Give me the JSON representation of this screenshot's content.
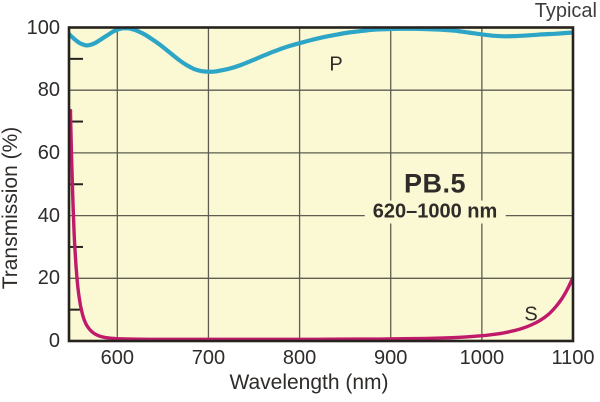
{
  "chart_data": {
    "type": "line",
    "title": "Typical",
    "xlabel": "Wavelength (nm)",
    "ylabel": "Transmission (%)",
    "xlim": [
      547,
      1100
    ],
    "ylim": [
      0,
      100
    ],
    "x_ticks": [
      600,
      700,
      800,
      900,
      1000,
      1100
    ],
    "y_ticks": [
      0,
      20,
      40,
      60,
      80,
      100
    ],
    "x_gridlines": [
      600,
      700,
      800,
      900,
      1000
    ],
    "y_gridlines": [
      20,
      40,
      60,
      80
    ],
    "y_minor_ticks": [
      10,
      30,
      50,
      70,
      90
    ],
    "grid": true,
    "legend_position": "none",
    "annotations": {
      "product_name": "PB.5",
      "product_range": "620–1000 nm",
      "p_curve_label": "P",
      "s_curve_label": "S"
    },
    "colors": {
      "plot_bg": "#fbf8d4",
      "grid": "#5d5d52",
      "border": "#26221e",
      "text": "#2e2b29",
      "p_curve": "#2da5c6",
      "s_curve": "#c01a6b"
    },
    "series": [
      {
        "name": "P",
        "color": "#2da5c6",
        "points": [
          [
            547,
            97.9
          ],
          [
            551,
            96.8
          ],
          [
            555,
            95.8
          ],
          [
            559,
            95.0
          ],
          [
            563,
            94.5
          ],
          [
            567,
            94.3
          ],
          [
            571,
            94.5
          ],
          [
            576,
            95.1
          ],
          [
            582,
            96.2
          ],
          [
            589,
            97.5
          ],
          [
            596,
            98.8
          ],
          [
            603,
            99.6
          ],
          [
            610,
            99.8
          ],
          [
            616,
            99.5
          ],
          [
            623,
            98.8
          ],
          [
            631,
            97.6
          ],
          [
            640,
            95.9
          ],
          [
            649,
            94.0
          ],
          [
            658,
            91.9
          ],
          [
            667,
            89.8
          ],
          [
            676,
            88.0
          ],
          [
            684,
            86.8
          ],
          [
            692,
            86.1
          ],
          [
            700,
            85.9
          ],
          [
            708,
            86.0
          ],
          [
            716,
            86.4
          ],
          [
            726,
            87.1
          ],
          [
            737,
            88.2
          ],
          [
            749,
            89.6
          ],
          [
            762,
            91.2
          ],
          [
            775,
            92.7
          ],
          [
            788,
            94.0
          ],
          [
            800,
            95.0
          ],
          [
            813,
            96.0
          ],
          [
            826,
            96.9
          ],
          [
            840,
            97.7
          ],
          [
            854,
            98.4
          ],
          [
            868,
            98.9
          ],
          [
            882,
            99.3
          ],
          [
            896,
            99.5
          ],
          [
            910,
            99.6
          ],
          [
            925,
            99.6
          ],
          [
            940,
            99.5
          ],
          [
            955,
            99.3
          ],
          [
            970,
            99.0
          ],
          [
            985,
            98.4
          ],
          [
            1000,
            97.8
          ],
          [
            1012,
            97.4
          ],
          [
            1025,
            97.2
          ],
          [
            1038,
            97.3
          ],
          [
            1052,
            97.5
          ],
          [
            1066,
            97.8
          ],
          [
            1080,
            98.0
          ],
          [
            1090,
            98.2
          ],
          [
            1100,
            98.4
          ]
        ]
      },
      {
        "name": "S",
        "color": "#c01a6b",
        "points": [
          [
            548.6,
            73.5
          ],
          [
            549.2,
            66
          ],
          [
            549.9,
            58
          ],
          [
            550.7,
            50
          ],
          [
            551.6,
            42
          ],
          [
            552.6,
            34.5
          ],
          [
            553.8,
            28
          ],
          [
            555.2,
            22
          ],
          [
            556.8,
            17
          ],
          [
            558.6,
            13
          ],
          [
            560.7,
            9.8
          ],
          [
            563,
            7.3
          ],
          [
            565.7,
            5.4
          ],
          [
            568.8,
            4.0
          ],
          [
            572.3,
            2.9
          ],
          [
            576.3,
            2.1
          ],
          [
            581,
            1.5
          ],
          [
            587,
            1.1
          ],
          [
            594,
            0.85
          ],
          [
            603,
            0.7
          ],
          [
            615,
            0.6
          ],
          [
            635,
            0.55
          ],
          [
            665,
            0.55
          ],
          [
            700,
            0.55
          ],
          [
            740,
            0.55
          ],
          [
            780,
            0.55
          ],
          [
            820,
            0.55
          ],
          [
            860,
            0.6
          ],
          [
            895,
            0.65
          ],
          [
            925,
            0.75
          ],
          [
            950,
            0.9
          ],
          [
            970,
            1.1
          ],
          [
            988,
            1.4
          ],
          [
            1004,
            1.8
          ],
          [
            1018,
            2.3
          ],
          [
            1031,
            3.0
          ],
          [
            1043,
            3.9
          ],
          [
            1054,
            5.1
          ],
          [
            1064,
            6.6
          ],
          [
            1073,
            8.5
          ],
          [
            1081,
            10.9
          ],
          [
            1088,
            13.6
          ],
          [
            1094,
            16.6
          ],
          [
            1100,
            20.3
          ]
        ]
      }
    ]
  }
}
